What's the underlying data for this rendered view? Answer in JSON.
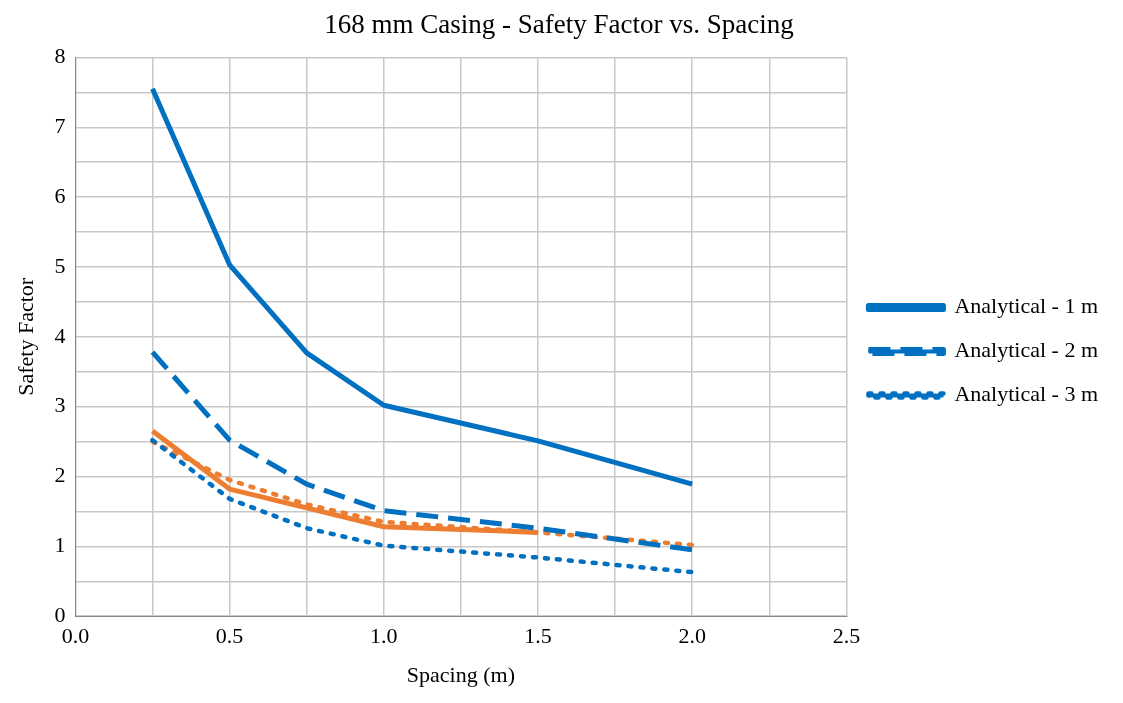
{
  "chart_data": {
    "type": "line",
    "title": "168 mm Casing - Safety Factor vs. Spacing",
    "xlabel": "Spacing (m)",
    "ylabel": "Safety Factor",
    "x": [
      0.25,
      0.5,
      0.75,
      1.0,
      1.5,
      2.0
    ],
    "series": [
      {
        "name": "Analytical - 1 m",
        "color": "#0070c0",
        "line_style": "solid",
        "values": [
          7.55,
          5.03,
          3.77,
          3.02,
          2.51,
          1.89
        ]
      },
      {
        "name": "Analytical - 2 m",
        "color": "#0070c0",
        "line_style": "dashed",
        "values": [
          3.78,
          2.52,
          1.89,
          1.51,
          1.26,
          0.95
        ]
      },
      {
        "name": "Analytical - 3 m",
        "color": "#0070c0",
        "line_style": "dotted",
        "values": [
          2.52,
          1.68,
          1.26,
          1.01,
          0.84,
          0.63
        ]
      },
      {
        "color": "#ed7d31",
        "line_style": "dotted",
        "values": [
          2.5,
          1.95,
          1.6,
          1.35,
          1.2,
          1.02
        ]
      },
      {
        "color": "#ed7d31",
        "line_style": "solid",
        "values": [
          2.65,
          1.82,
          1.55,
          1.28,
          1.2,
          null
        ]
      }
    ],
    "xlim": [
      0,
      2.5
    ],
    "xticks": [
      {
        "value": 0,
        "label": "0.0"
      },
      {
        "value": 0.25,
        "label": null
      },
      {
        "value": 0.5,
        "label": "0.5"
      },
      {
        "value": 0.75,
        "label": null
      },
      {
        "value": 1,
        "label": "1.0"
      },
      {
        "value": 1.25,
        "label": null
      },
      {
        "value": 1.5,
        "label": "1.5"
      },
      {
        "value": 1.75,
        "label": null
      },
      {
        "value": 2,
        "label": "2.0"
      },
      {
        "value": 2.25,
        "label": null
      },
      {
        "value": 2.5,
        "label": "2.5"
      }
    ],
    "ylim": [
      0,
      8
    ],
    "yticks": [
      0,
      {
        "value": 0.5,
        "label": null
      },
      1,
      {
        "value": 1.5,
        "label": null
      },
      2,
      {
        "value": 2.5,
        "label": null
      },
      3,
      {
        "value": 3.5,
        "label": null
      },
      4,
      {
        "value": 4.5,
        "label": null
      },
      5,
      {
        "value": 5.5,
        "label": null
      },
      6,
      {
        "value": 6.5,
        "label": null
      },
      7,
      {
        "value": 7.5,
        "label": null
      },
      8
    ],
    "grid": true,
    "legend": "right",
    "marker": "none"
  }
}
